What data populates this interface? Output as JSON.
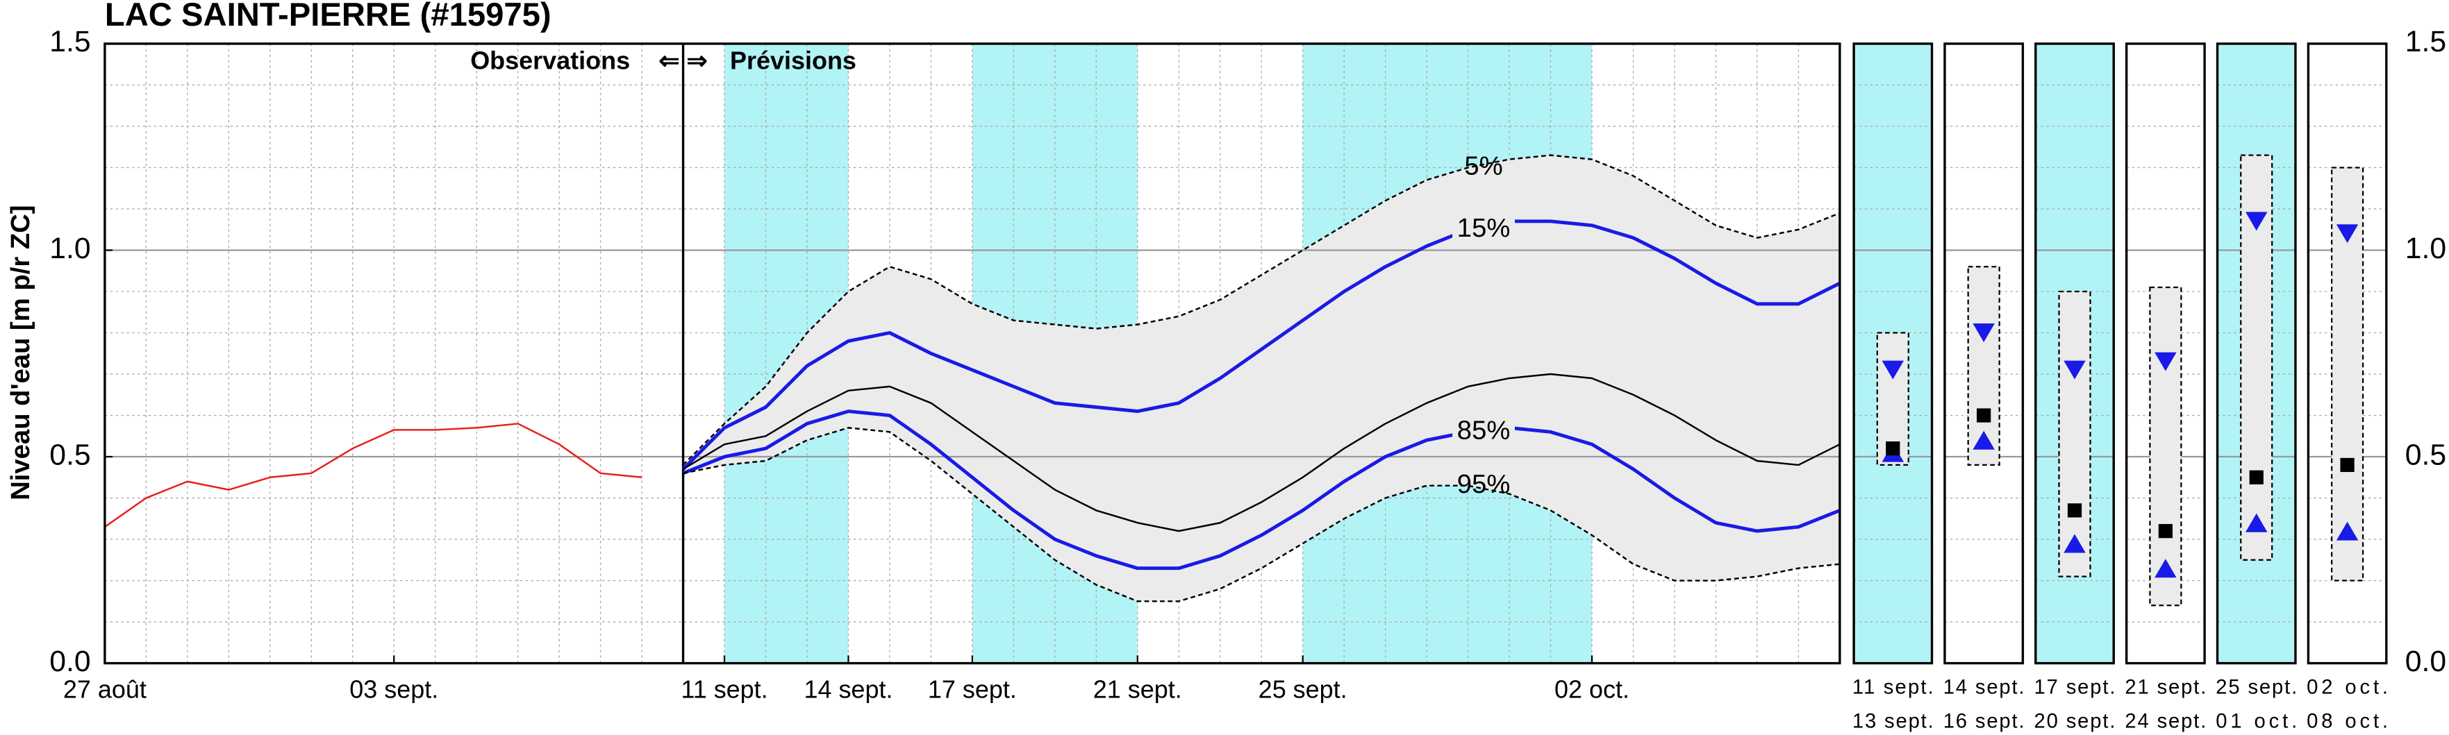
{
  "chart_data": {
    "type": "line",
    "title": "LAC SAINT-PIERRE (#15975)",
    "y_label": "Niveau d'eau [m p/r ZC]",
    "observations_label": "Observations",
    "arrows_label": "⇐ ⇒",
    "forecast_label": "Prévisions",
    "divider_x": 14,
    "xlim": [
      0,
      42
    ],
    "xticks": [
      {
        "value": 0,
        "label": "27 août"
      },
      {
        "value": 7,
        "label": "03 sept."
      },
      {
        "value": 15,
        "label": "11 sept."
      },
      {
        "value": 18,
        "label": "14 sept."
      },
      {
        "value": 21,
        "label": "17 sept."
      },
      {
        "value": 25,
        "label": "21 sept."
      },
      {
        "value": 29,
        "label": "25 sept."
      },
      {
        "value": 36,
        "label": "02 oct."
      }
    ],
    "ylim": [
      0,
      1.5
    ],
    "yticks": [
      {
        "value": 0,
        "label": "0.0"
      },
      {
        "value": 0.5,
        "label": "0.5"
      },
      {
        "value": 1,
        "label": "1.0"
      },
      {
        "value": 1.5,
        "label": "1.5"
      }
    ],
    "grid": true,
    "shade_color": "#b2f3f6",
    "band_color": "#ebebeb",
    "shaded_bands": [
      [
        15,
        18
      ],
      [
        21,
        25
      ],
      [
        29,
        36
      ]
    ],
    "series": [
      {
        "color": "#e8201a",
        "x": [
          0,
          1,
          2,
          3,
          4,
          5,
          6,
          7,
          8,
          9,
          10,
          11,
          12,
          13
        ],
        "values": [
          0.33,
          0.4,
          0.44,
          0.42,
          0.45,
          0.46,
          0.52,
          0.565,
          0.565,
          0.57,
          0.58,
          0.53,
          0.46,
          0.45
        ]
      },
      {
        "name": "5%",
        "color": "#000000",
        "dashed": true,
        "x": [
          14,
          15,
          16,
          17,
          18,
          19,
          20,
          21,
          22,
          23,
          24,
          25,
          26,
          27,
          28,
          29,
          30,
          31,
          32,
          33,
          34,
          35,
          36,
          37,
          38,
          39,
          40,
          41,
          42
        ],
        "values": [
          0.48,
          0.58,
          0.67,
          0.8,
          0.9,
          0.96,
          0.93,
          0.87,
          0.83,
          0.82,
          0.81,
          0.82,
          0.84,
          0.88,
          0.94,
          1.0,
          1.06,
          1.12,
          1.17,
          1.2,
          1.22,
          1.23,
          1.22,
          1.18,
          1.12,
          1.06,
          1.03,
          1.05,
          1.09
        ]
      },
      {
        "name": "15%",
        "color": "#1a1ae6",
        "x": [
          14,
          15,
          16,
          17,
          18,
          19,
          20,
          21,
          22,
          23,
          24,
          25,
          26,
          27,
          28,
          29,
          30,
          31,
          32,
          33,
          34,
          35,
          36,
          37,
          38,
          39,
          40,
          41,
          42
        ],
        "values": [
          0.47,
          0.57,
          0.62,
          0.72,
          0.78,
          0.8,
          0.75,
          0.71,
          0.67,
          0.63,
          0.62,
          0.61,
          0.63,
          0.69,
          0.76,
          0.83,
          0.9,
          0.96,
          1.01,
          1.05,
          1.07,
          1.07,
          1.06,
          1.03,
          0.98,
          0.92,
          0.87,
          0.87,
          0.92
        ]
      },
      {
        "color": "#000000",
        "x": [
          14,
          15,
          16,
          17,
          18,
          19,
          20,
          21,
          22,
          23,
          24,
          25,
          26,
          27,
          28,
          29,
          30,
          31,
          32,
          33,
          34,
          35,
          36,
          37,
          38,
          39,
          40,
          41,
          42
        ],
        "values": [
          0.47,
          0.53,
          0.55,
          0.61,
          0.66,
          0.67,
          0.63,
          0.56,
          0.49,
          0.42,
          0.37,
          0.34,
          0.32,
          0.34,
          0.39,
          0.45,
          0.52,
          0.58,
          0.63,
          0.67,
          0.69,
          0.7,
          0.69,
          0.65,
          0.6,
          0.54,
          0.49,
          0.48,
          0.53
        ]
      },
      {
        "name": "85%",
        "color": "#1a1ae6",
        "x": [
          14,
          15,
          16,
          17,
          18,
          19,
          20,
          21,
          22,
          23,
          24,
          25,
          26,
          27,
          28,
          29,
          30,
          31,
          32,
          33,
          34,
          35,
          36,
          37,
          38,
          39,
          40,
          41,
          42
        ],
        "values": [
          0.46,
          0.5,
          0.52,
          0.58,
          0.61,
          0.6,
          0.53,
          0.45,
          0.37,
          0.3,
          0.26,
          0.23,
          0.23,
          0.26,
          0.31,
          0.37,
          0.44,
          0.5,
          0.54,
          0.56,
          0.57,
          0.56,
          0.53,
          0.47,
          0.4,
          0.34,
          0.32,
          0.33,
          0.37
        ]
      },
      {
        "name": "95%",
        "color": "#000000",
        "dashed": true,
        "x": [
          14,
          15,
          16,
          17,
          18,
          19,
          20,
          21,
          22,
          23,
          24,
          25,
          26,
          27,
          28,
          29,
          30,
          31,
          32,
          33,
          34,
          35,
          36,
          37,
          38,
          39,
          40,
          41,
          42
        ],
        "values": [
          0.46,
          0.48,
          0.49,
          0.54,
          0.57,
          0.56,
          0.49,
          0.41,
          0.33,
          0.25,
          0.19,
          0.15,
          0.15,
          0.18,
          0.23,
          0.29,
          0.35,
          0.4,
          0.43,
          0.43,
          0.41,
          0.37,
          0.31,
          0.24,
          0.2,
          0.2,
          0.21,
          0.23,
          0.24
        ]
      }
    ],
    "panels": [
      {
        "dates": [
          "11 sept.",
          "13 sept."
        ],
        "shaded": true,
        "low": 0.48,
        "high": 0.8,
        "q15": 0.71,
        "median": 0.52,
        "q85": 0.51
      },
      {
        "dates": [
          "14 sept.",
          "16 sept."
        ],
        "shaded": false,
        "low": 0.48,
        "high": 0.96,
        "q15": 0.8,
        "median": 0.6,
        "q85": 0.54
      },
      {
        "dates": [
          "17 sept.",
          "20 sept."
        ],
        "shaded": true,
        "low": 0.21,
        "high": 0.9,
        "q15": 0.71,
        "median": 0.37,
        "q85": 0.29
      },
      {
        "dates": [
          "21 sept.",
          "24 sept."
        ],
        "shaded": false,
        "low": 0.14,
        "high": 0.91,
        "q15": 0.73,
        "median": 0.32,
        "q85": 0.23
      },
      {
        "dates": [
          "25 sept.",
          "01 oct."
        ],
        "shaded": true,
        "low": 0.25,
        "high": 1.23,
        "q15": 1.07,
        "median": 0.45,
        "q85": 0.34
      },
      {
        "dates": [
          "02 oct.",
          "08 oct."
        ],
        "shaded": false,
        "low": 0.2,
        "high": 1.2,
        "q15": 1.04,
        "median": 0.48,
        "q85": 0.32
      }
    ]
  }
}
